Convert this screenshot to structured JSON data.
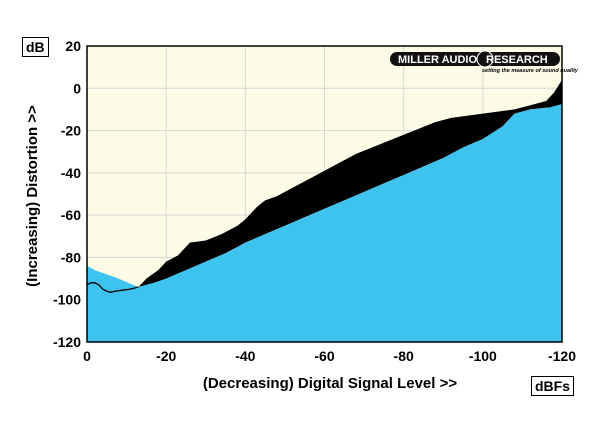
{
  "chart_data": {
    "type": "area",
    "title": "",
    "xlabel": "(Decreasing) Digital Signal Level >>",
    "ylabel": "(Increasing) Distortion >>",
    "x_unit": "dBFs",
    "y_unit": "dB",
    "xlim": [
      0,
      -120
    ],
    "ylim": [
      -120,
      20
    ],
    "x_ticks": [
      0,
      -20,
      -40,
      -60,
      -80,
      -100,
      -120
    ],
    "y_ticks": [
      20,
      0,
      -20,
      -40,
      -60,
      -80,
      -100,
      -120
    ],
    "x_tick_labels": [
      "0",
      "-20",
      "-40",
      "-60",
      "-80",
      "-100",
      "-120"
    ],
    "y_tick_labels": [
      "20",
      "0",
      "-20",
      "-40",
      "-60",
      "-80",
      "-100",
      "-120"
    ],
    "grid": true,
    "legend": "none",
    "colors": {
      "plot_bg": "#fdfbe6",
      "area_primary": "#3ec3ee",
      "area_secondary": "#000000",
      "grid": "#d8d8d8"
    },
    "series": [
      {
        "values": [
          [
            0,
            -84
          ],
          [
            -2,
            -86
          ],
          [
            -5,
            -88
          ],
          [
            -8,
            -90
          ],
          [
            -11,
            -92.5
          ],
          [
            -13,
            -94
          ],
          [
            -17,
            -92
          ],
          [
            -20,
            -90
          ],
          [
            -25,
            -86
          ],
          [
            -30,
            -82
          ],
          [
            -35,
            -78
          ],
          [
            -40,
            -73
          ],
          [
            -45,
            -69
          ],
          [
            -50,
            -65
          ],
          [
            -55,
            -61
          ],
          [
            -60,
            -57
          ],
          [
            -65,
            -53
          ],
          [
            -70,
            -49
          ],
          [
            -75,
            -45
          ],
          [
            -80,
            -41
          ],
          [
            -85,
            -37
          ],
          [
            -90,
            -33
          ],
          [
            -95,
            -28
          ],
          [
            -100,
            -24
          ],
          [
            -105,
            -18
          ],
          [
            -108,
            -12
          ],
          [
            -112,
            -10
          ],
          [
            -117,
            -9
          ],
          [
            -120,
            -7.5
          ]
        ]
      },
      {
        "values": [
          [
            -13,
            -94
          ],
          [
            -15,
            -90
          ],
          [
            -18,
            -86
          ],
          [
            -20,
            -82
          ],
          [
            -23,
            -79
          ],
          [
            -26,
            -73
          ],
          [
            -30,
            -72
          ],
          [
            -34,
            -69
          ],
          [
            -38,
            -65
          ],
          [
            -40,
            -62
          ],
          [
            -43,
            -56
          ],
          [
            -45,
            -53
          ],
          [
            -48,
            -51
          ],
          [
            -52,
            -47
          ],
          [
            -56,
            -43
          ],
          [
            -60,
            -39
          ],
          [
            -64,
            -35
          ],
          [
            -68,
            -31
          ],
          [
            -72,
            -28
          ],
          [
            -76,
            -25
          ],
          [
            -80,
            -22
          ],
          [
            -84,
            -19
          ],
          [
            -88,
            -16
          ],
          [
            -92,
            -14
          ],
          [
            -96,
            -13
          ],
          [
            -100,
            -12
          ],
          [
            -104,
            -11
          ],
          [
            -108,
            -10
          ],
          [
            -112,
            -8
          ],
          [
            -116,
            -6
          ],
          [
            -118,
            -2
          ],
          [
            -120,
            4
          ]
        ]
      },
      {
        "values": [
          [
            0,
            -93
          ],
          [
            -1,
            -92
          ],
          [
            -2,
            -92
          ],
          [
            -3,
            -93
          ],
          [
            -4,
            -95
          ],
          [
            -5,
            -96
          ],
          [
            -6,
            -96.5
          ],
          [
            -7,
            -96
          ],
          [
            -9,
            -95.5
          ],
          [
            -11,
            -95
          ],
          [
            -13,
            -94
          ]
        ]
      }
    ],
    "annotations": {
      "brand": "MILLER AUDIO RESEARCH",
      "brand_part1": "MILLER AUDIO",
      "brand_part2": "RESEARCH",
      "tagline": "setting the measure of sound quality"
    }
  }
}
